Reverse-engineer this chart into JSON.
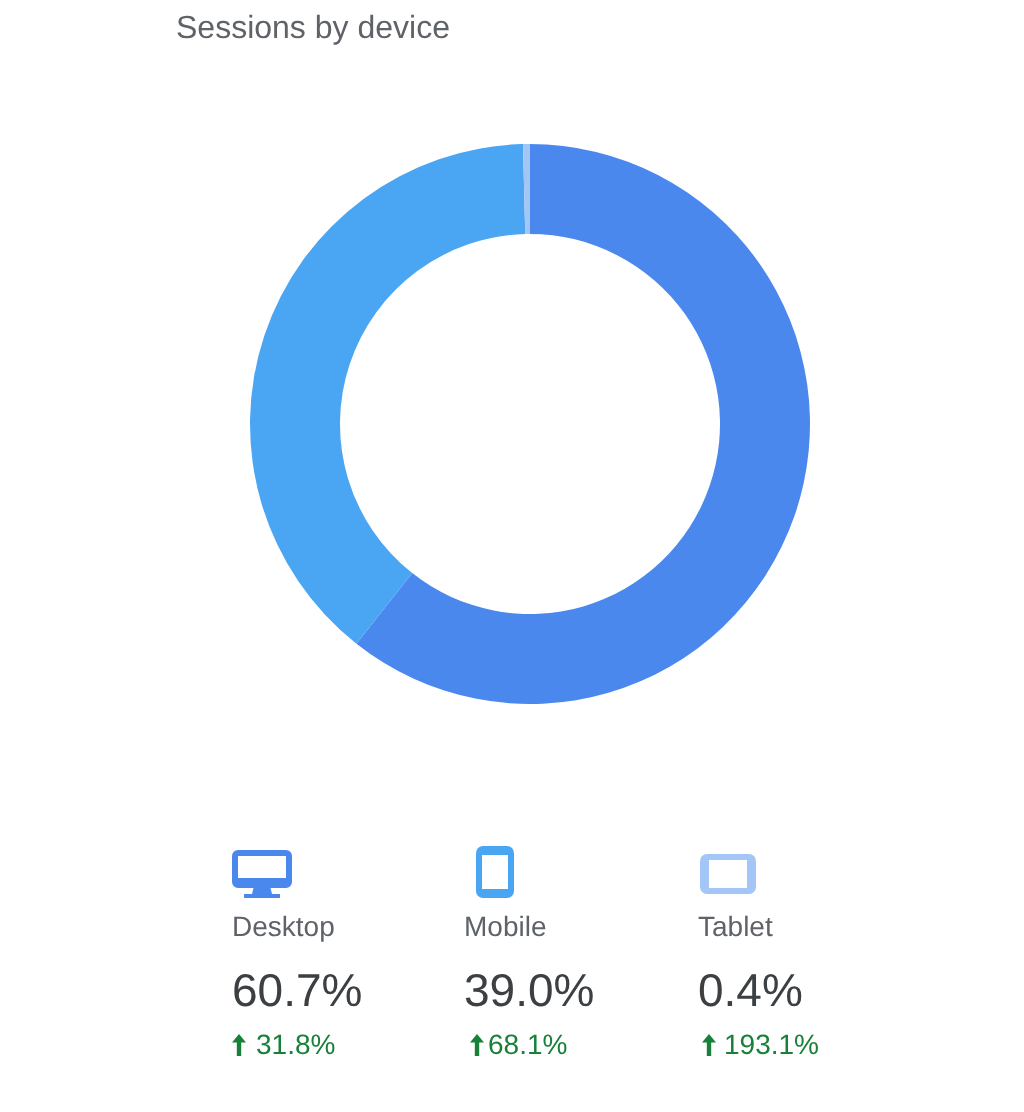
{
  "chart_data": {
    "type": "donut",
    "title": "Sessions by device",
    "categories": [
      "Desktop",
      "Mobile",
      "Tablet"
    ],
    "values": [
      60.7,
      39.0,
      0.4
    ],
    "colors": [
      "#4a88ee",
      "#4aa5f2",
      "#a4c6f7"
    ],
    "value_labels": [
      "60.7%",
      "39.0%",
      "0.4%"
    ],
    "legend": "bottom",
    "annotations": [
      "31.8%",
      "68.1%",
      "193.1%"
    ]
  }
}
